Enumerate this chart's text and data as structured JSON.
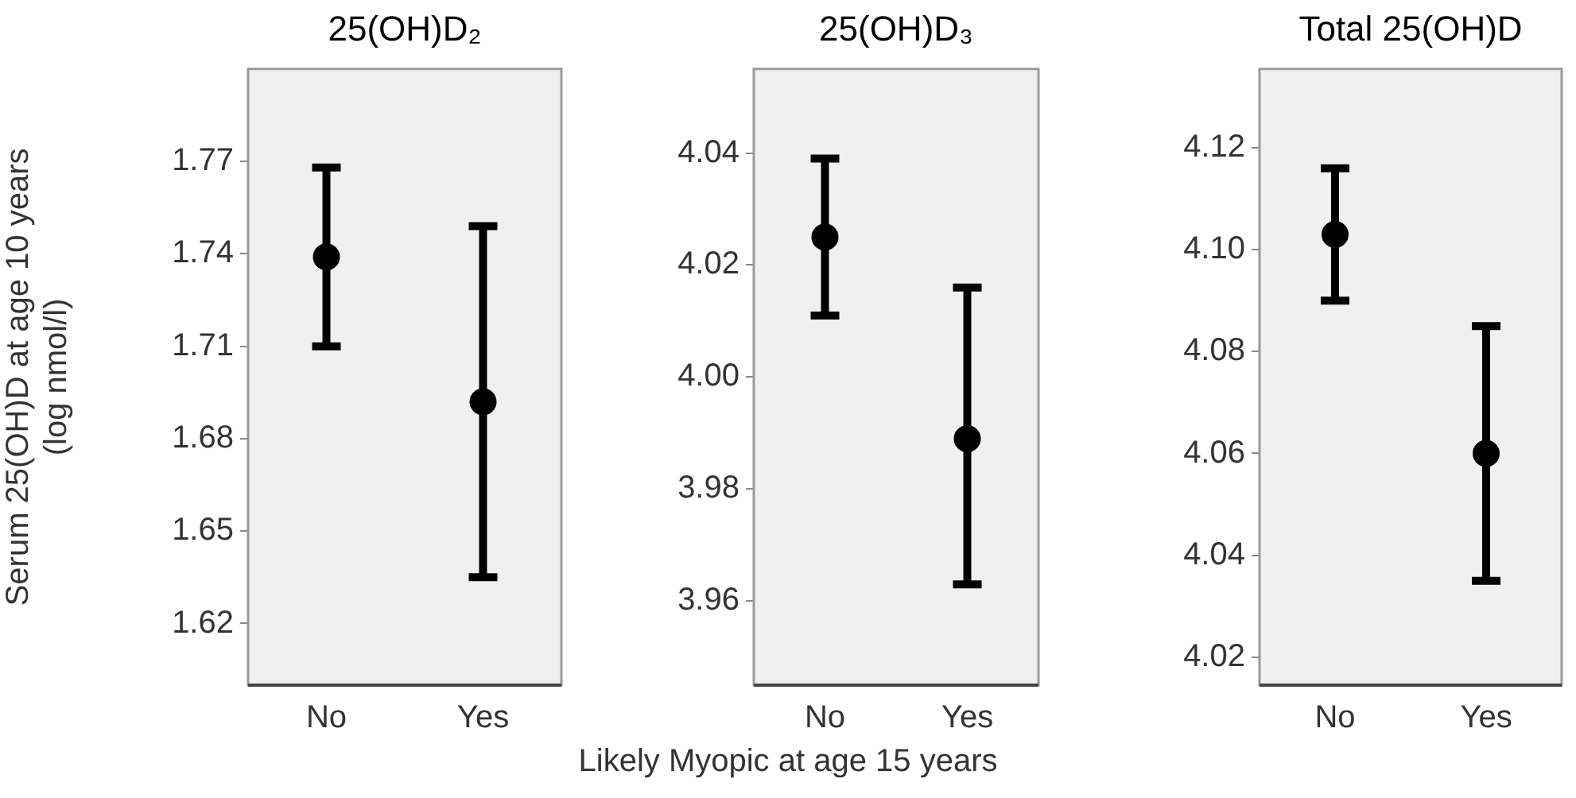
{
  "chart_data": [
    {
      "type": "scatter",
      "title": "25(OH)D₂",
      "ylabel": "Serum 25(OH)D at age 10 years\n(log nmol/l)",
      "categories": [
        "No",
        "Yes"
      ],
      "values": [
        1.739,
        1.692
      ],
      "errors": [
        [
          1.71,
          1.768
        ],
        [
          1.635,
          1.749
        ]
      ],
      "color": "#000000",
      "marker": "circle",
      "ylim": [
        1.6,
        1.8
      ],
      "yticks": [
        1.62,
        1.65,
        1.68,
        1.71,
        1.74,
        1.77
      ],
      "grid": false,
      "legend": false
    },
    {
      "type": "scatter",
      "title": "25(OH)D₃",
      "xlabel": "Likely Myopic at age 15 years",
      "categories": [
        "No",
        "Yes"
      ],
      "values": [
        4.025,
        3.989
      ],
      "errors": [
        [
          4.011,
          4.039
        ],
        [
          3.963,
          4.016
        ]
      ],
      "color": "#000000",
      "marker": "circle",
      "ylim": [
        3.945,
        4.055
      ],
      "yticks": [
        3.96,
        3.98,
        {
          "value": 4,
          "label": "4.00"
        },
        4.02,
        4.04
      ],
      "grid": false,
      "legend": false
    },
    {
      "type": "scatter",
      "title": "Total 25(OH)D",
      "categories": [
        "No",
        "Yes"
      ],
      "values": [
        4.103,
        4.06
      ],
      "errors": [
        [
          4.09,
          4.116
        ],
        [
          4.035,
          4.085
        ]
      ],
      "color": "#000000",
      "marker": "circle",
      "ylim": [
        4.0145,
        4.1355
      ],
      "yticks": [
        4.02,
        4.04,
        4.06,
        4.08,
        {
          "value": 4.1,
          "label": "4.10"
        },
        4.12
      ],
      "grid": false,
      "legend": false
    }
  ]
}
